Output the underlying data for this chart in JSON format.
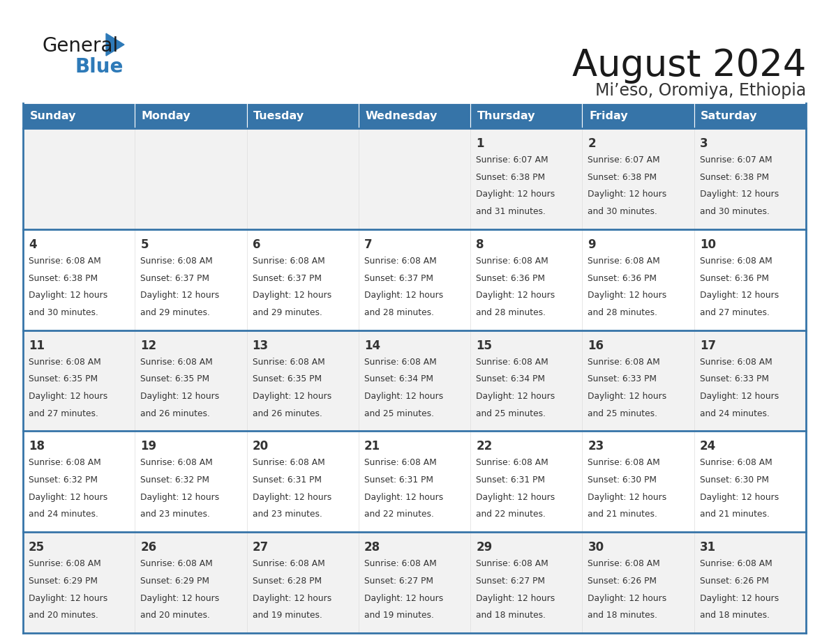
{
  "title": "August 2024",
  "subtitle": "Mi’eso, Oromiya, Ethiopia",
  "days_of_week": [
    "Sunday",
    "Monday",
    "Tuesday",
    "Wednesday",
    "Thursday",
    "Friday",
    "Saturday"
  ],
  "header_bg": "#3674a8",
  "header_text": "#FFFFFF",
  "row_bg_odd": "#F2F2F2",
  "row_bg_even": "#FFFFFF",
  "divider_color": "#3674a8",
  "cell_border_color": "#cccccc",
  "text_color": "#333333",
  "title_color": "#1a1a1a",
  "subtitle_color": "#333333",
  "logo_general_color": "#1a1a1a",
  "logo_blue_color": "#2E7AB8",
  "calendar_data": [
    [
      {
        "day": "",
        "sunrise": "",
        "sunset": "",
        "daylight": ""
      },
      {
        "day": "",
        "sunrise": "",
        "sunset": "",
        "daylight": ""
      },
      {
        "day": "",
        "sunrise": "",
        "sunset": "",
        "daylight": ""
      },
      {
        "day": "",
        "sunrise": "",
        "sunset": "",
        "daylight": ""
      },
      {
        "day": "1",
        "sunrise": "6:07 AM",
        "sunset": "6:38 PM",
        "daylight": "12 hours and 31 minutes."
      },
      {
        "day": "2",
        "sunrise": "6:07 AM",
        "sunset": "6:38 PM",
        "daylight": "12 hours and 30 minutes."
      },
      {
        "day": "3",
        "sunrise": "6:07 AM",
        "sunset": "6:38 PM",
        "daylight": "12 hours and 30 minutes."
      }
    ],
    [
      {
        "day": "4",
        "sunrise": "6:08 AM",
        "sunset": "6:38 PM",
        "daylight": "12 hours and 30 minutes."
      },
      {
        "day": "5",
        "sunrise": "6:08 AM",
        "sunset": "6:37 PM",
        "daylight": "12 hours and 29 minutes."
      },
      {
        "day": "6",
        "sunrise": "6:08 AM",
        "sunset": "6:37 PM",
        "daylight": "12 hours and 29 minutes."
      },
      {
        "day": "7",
        "sunrise": "6:08 AM",
        "sunset": "6:37 PM",
        "daylight": "12 hours and 28 minutes."
      },
      {
        "day": "8",
        "sunrise": "6:08 AM",
        "sunset": "6:36 PM",
        "daylight": "12 hours and 28 minutes."
      },
      {
        "day": "9",
        "sunrise": "6:08 AM",
        "sunset": "6:36 PM",
        "daylight": "12 hours and 28 minutes."
      },
      {
        "day": "10",
        "sunrise": "6:08 AM",
        "sunset": "6:36 PM",
        "daylight": "12 hours and 27 minutes."
      }
    ],
    [
      {
        "day": "11",
        "sunrise": "6:08 AM",
        "sunset": "6:35 PM",
        "daylight": "12 hours and 27 minutes."
      },
      {
        "day": "12",
        "sunrise": "6:08 AM",
        "sunset": "6:35 PM",
        "daylight": "12 hours and 26 minutes."
      },
      {
        "day": "13",
        "sunrise": "6:08 AM",
        "sunset": "6:35 PM",
        "daylight": "12 hours and 26 minutes."
      },
      {
        "day": "14",
        "sunrise": "6:08 AM",
        "sunset": "6:34 PM",
        "daylight": "12 hours and 25 minutes."
      },
      {
        "day": "15",
        "sunrise": "6:08 AM",
        "sunset": "6:34 PM",
        "daylight": "12 hours and 25 minutes."
      },
      {
        "day": "16",
        "sunrise": "6:08 AM",
        "sunset": "6:33 PM",
        "daylight": "12 hours and 25 minutes."
      },
      {
        "day": "17",
        "sunrise": "6:08 AM",
        "sunset": "6:33 PM",
        "daylight": "12 hours and 24 minutes."
      }
    ],
    [
      {
        "day": "18",
        "sunrise": "6:08 AM",
        "sunset": "6:32 PM",
        "daylight": "12 hours and 24 minutes."
      },
      {
        "day": "19",
        "sunrise": "6:08 AM",
        "sunset": "6:32 PM",
        "daylight": "12 hours and 23 minutes."
      },
      {
        "day": "20",
        "sunrise": "6:08 AM",
        "sunset": "6:31 PM",
        "daylight": "12 hours and 23 minutes."
      },
      {
        "day": "21",
        "sunrise": "6:08 AM",
        "sunset": "6:31 PM",
        "daylight": "12 hours and 22 minutes."
      },
      {
        "day": "22",
        "sunrise": "6:08 AM",
        "sunset": "6:31 PM",
        "daylight": "12 hours and 22 minutes."
      },
      {
        "day": "23",
        "sunrise": "6:08 AM",
        "sunset": "6:30 PM",
        "daylight": "12 hours and 21 minutes."
      },
      {
        "day": "24",
        "sunrise": "6:08 AM",
        "sunset": "6:30 PM",
        "daylight": "12 hours and 21 minutes."
      }
    ],
    [
      {
        "day": "25",
        "sunrise": "6:08 AM",
        "sunset": "6:29 PM",
        "daylight": "12 hours and 20 minutes."
      },
      {
        "day": "26",
        "sunrise": "6:08 AM",
        "sunset": "6:29 PM",
        "daylight": "12 hours and 20 minutes."
      },
      {
        "day": "27",
        "sunrise": "6:08 AM",
        "sunset": "6:28 PM",
        "daylight": "12 hours and 19 minutes."
      },
      {
        "day": "28",
        "sunrise": "6:08 AM",
        "sunset": "6:27 PM",
        "daylight": "12 hours and 19 minutes."
      },
      {
        "day": "29",
        "sunrise": "6:08 AM",
        "sunset": "6:27 PM",
        "daylight": "12 hours and 18 minutes."
      },
      {
        "day": "30",
        "sunrise": "6:08 AM",
        "sunset": "6:26 PM",
        "daylight": "12 hours and 18 minutes."
      },
      {
        "day": "31",
        "sunrise": "6:08 AM",
        "sunset": "6:26 PM",
        "daylight": "12 hours and 18 minutes."
      }
    ]
  ]
}
